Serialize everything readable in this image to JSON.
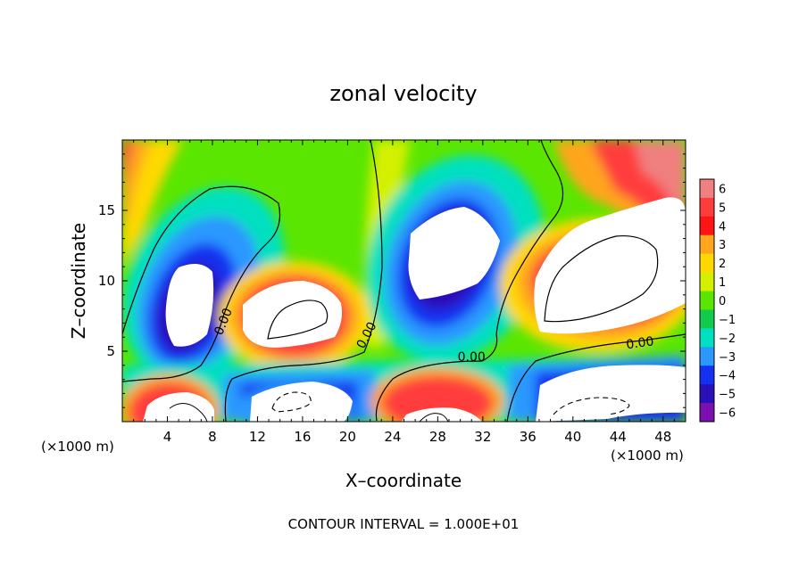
{
  "chart_data": {
    "type": "heatmap",
    "title": "zonal velocity",
    "xlabel": "X–coordinate",
    "ylabel": "Z–coordinate",
    "x_units_left": "(×1000 m)",
    "x_units_right": "(×1000 m)",
    "footer": "CONTOUR INTERVAL = 1.000E+01",
    "xlim": [
      0,
      50
    ],
    "ylim": [
      0,
      20
    ],
    "x_ticks": [
      4,
      8,
      12,
      16,
      20,
      24,
      28,
      32,
      36,
      40,
      44,
      48
    ],
    "y_ticks": [
      5,
      10,
      15
    ],
    "colorbar": {
      "levels": [
        6,
        5,
        4,
        3,
        2,
        1,
        0,
        -1,
        -2,
        -3,
        -4,
        -5,
        -6
      ],
      "colors": [
        "#f07f7f",
        "#ff3c3c",
        "#ff1414",
        "#ffa51e",
        "#ffd800",
        "#d4f000",
        "#5ae600",
        "#11cc4c",
        "#00e0c0",
        "#2a98ff",
        "#1430f0",
        "#2a10b8",
        "#7a10b0"
      ]
    },
    "contour_labels": [
      {
        "text": "0.00",
        "x": 9.3,
        "y": 7.0,
        "angle": -68
      },
      {
        "text": "0.00",
        "x": 22.0,
        "y": 6.0,
        "angle": -62
      },
      {
        "text": "0.00",
        "x": 31.0,
        "y": 4.3,
        "angle": 0
      },
      {
        "text": "0.00",
        "x": 46.0,
        "y": 5.3,
        "angle": -8
      }
    ]
  }
}
